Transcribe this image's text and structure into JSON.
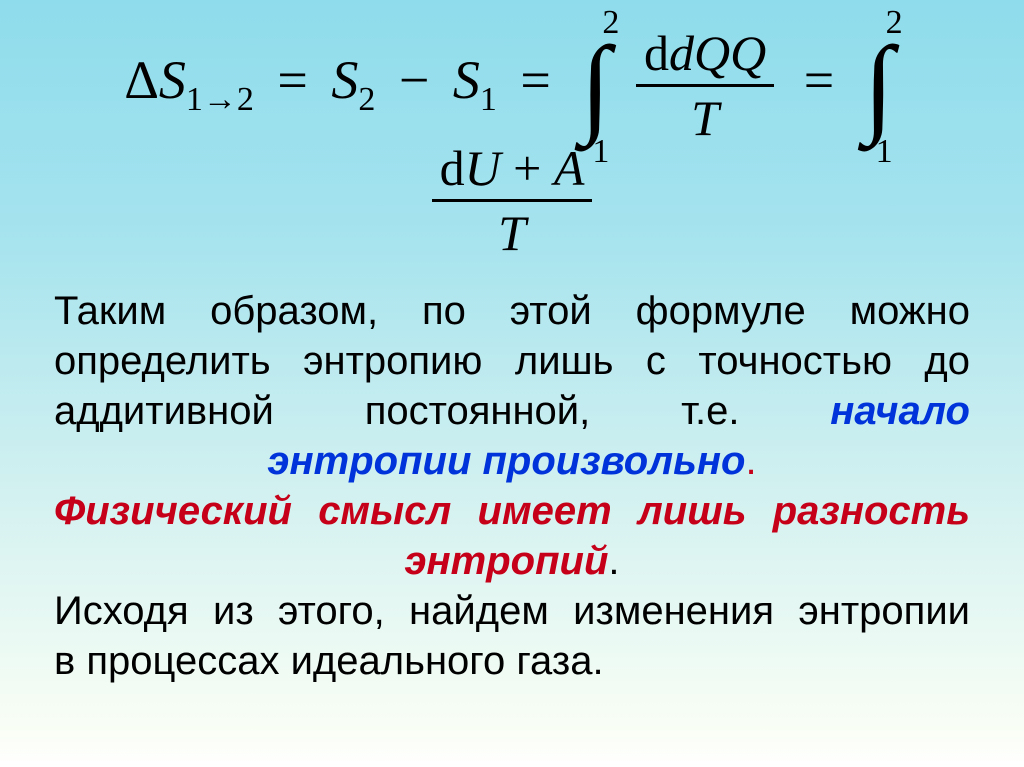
{
  "colors": {
    "background_gradient_top": "#8fdcec",
    "background_gradient_bottom": "#ffffff",
    "text_black": "#000000",
    "text_blue": "#0033d9",
    "text_red": "#c50018"
  },
  "font": {
    "body_family": "Arial",
    "formula_family": "Times New Roman",
    "body_size_pt": 30,
    "formula_size_pt": 40
  },
  "formula": {
    "delta_s": "Δ",
    "s_var": "S",
    "sub_1to2": "1→2",
    "eq": "=",
    "sub_2": "2",
    "minus": "−",
    "sub_1": "1",
    "int_lower": "1",
    "int_upper": "2",
    "dQ": "dQ",
    "T": "T",
    "dU_plus_A": "dU + A"
  },
  "text": {
    "l1": "Таким",
    "l1b": "образом,",
    "l1c": "по",
    "l1d": "этой",
    "l1e": "формуле",
    "l1f": "можно",
    "l2": "определить энтропию лишь с точностью до",
    "l3a": "аддитивной",
    "l3b": "постоянной,",
    "l3c": "т.е.",
    "l3d": "начало",
    "l4": "энтропии    произвольно",
    "l4dot": ".",
    "l5": "Физический смысл имеет лишь разность",
    "l6": "энтропий",
    "l6dot": ".",
    "l7": "Исходя из этого, найдем изменения энтропии",
    "l8": "в процессах идеального газа."
  }
}
